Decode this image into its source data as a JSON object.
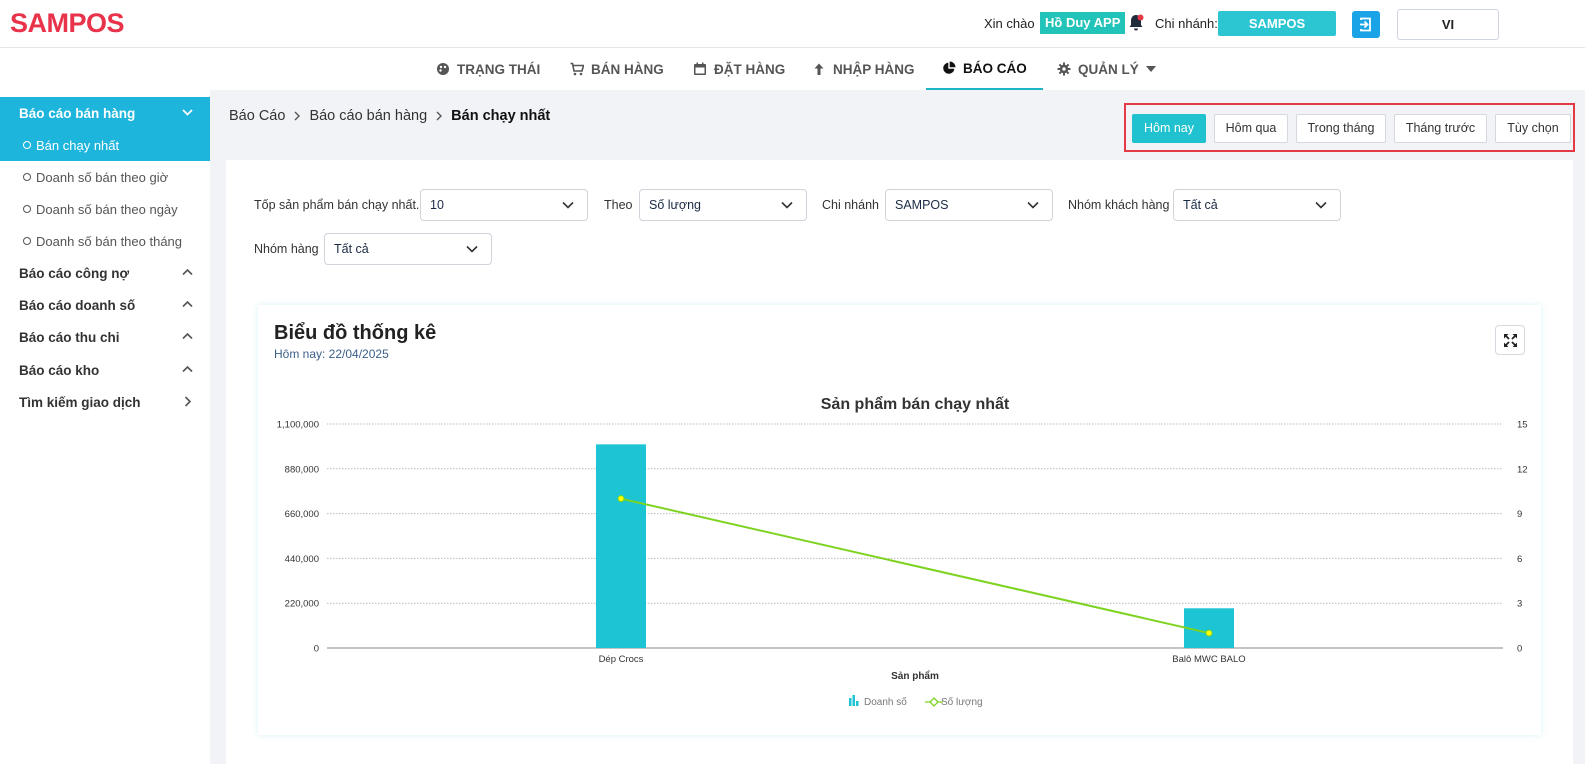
{
  "header": {
    "logo": "SAMPOS",
    "greeting": "Xin chào",
    "user_name": "Hồ Duy APP",
    "branch_label": "Chi nhánh:",
    "branch_value": "SAMPOS",
    "language": "VI"
  },
  "nav": {
    "items": [
      {
        "label": "TRẠNG THÁI",
        "icon": "palette-icon"
      },
      {
        "label": "BÁN HÀNG",
        "icon": "cart-icon"
      },
      {
        "label": "ĐẶT HÀNG",
        "icon": "calendar-icon"
      },
      {
        "label": "NHẬP HÀNG",
        "icon": "arrow-up-icon"
      },
      {
        "label": "BÁO CÁO",
        "icon": "pie-chart-icon"
      },
      {
        "label": "QUẢN LÝ",
        "icon": "gear-icon"
      }
    ],
    "active": "BÁO CÁO"
  },
  "sidebar": {
    "groups": [
      {
        "label": "Báo cáo bán hàng",
        "sub": [
          "Bán chạy nhất",
          "Doanh số bán theo giờ",
          "Doanh số bán theo ngày",
          "Doanh số bán theo tháng"
        ]
      },
      {
        "label": "Báo cáo công nợ"
      },
      {
        "label": "Báo cáo doanh số"
      },
      {
        "label": "Báo cáo thu chi"
      },
      {
        "label": "Báo cáo kho"
      },
      {
        "label": "Tìm kiếm giao dịch"
      }
    ]
  },
  "breadcrumb": [
    "Báo Cáo",
    "Báo cáo bán hàng",
    "Bán chạy nhất"
  ],
  "periods": [
    "Hôm nay",
    "Hôm qua",
    "Trong tháng",
    "Tháng trước",
    "Tùy chọn"
  ],
  "filters": {
    "top_label": "Tốp sản phẩm bán chạy nhất.",
    "top_value": "10",
    "by_label": "Theo",
    "by_value": "Số lượng",
    "branch_label": "Chi nhánh",
    "branch_value": "SAMPOS",
    "customer_group_label": "Nhóm khách hàng",
    "customer_group_value": "Tất cả",
    "product_group_label": "Nhóm hàng",
    "product_group_value": "Tất cả"
  },
  "chart_card": {
    "title": "Biểu đồ thống kê",
    "subtitle": "Hôm nay: 22/04/2025"
  },
  "colors": {
    "accent": "#1eb5dd",
    "bar": "#1cc4d4",
    "line": "#7ed321",
    "logo": "#e8334a",
    "highlight": "#e63946"
  },
  "chart_data": {
    "type": "bar",
    "title": "Sản phẩm bán chạy nhất",
    "xlabel": "Sản phẩm",
    "categories": [
      "Dép Crocs",
      "Balô MWC BALO"
    ],
    "series": [
      {
        "name": "Doanh số",
        "type": "bar",
        "axis": "left",
        "values": [
          1000000,
          195000
        ]
      },
      {
        "name": "Số lượng",
        "type": "line",
        "axis": "right",
        "values": [
          10,
          1
        ]
      }
    ],
    "y_left": {
      "ylim": [
        0,
        1100000
      ],
      "ticks": [
        "0",
        "220,000",
        "440,000",
        "660,000",
        "880,000",
        "1,100,000"
      ]
    },
    "y_right": {
      "ylim": [
        0,
        15
      ],
      "ticks": [
        "0",
        "3",
        "6",
        "9",
        "12",
        "15"
      ]
    },
    "grid": true,
    "legend": "bottom"
  }
}
